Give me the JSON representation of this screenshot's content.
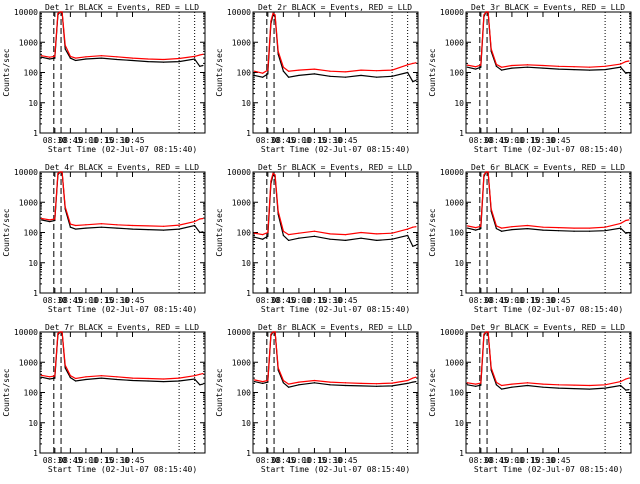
{
  "colors": {
    "events": "#000000",
    "lld": "#ff0000",
    "axis": "#000000",
    "background": "#ffffff"
  },
  "panel_title_suffix": "BLACK = Events, RED = LLD",
  "ylabel": "Counts/sec",
  "xlabel": "Start Time (02-Jul-07 08:15:40)",
  "xtick_labels": [
    "08:30",
    "08:45",
    "10:00",
    "10:15",
    "10:30",
    "10:45"
  ],
  "ytick_labels": [
    "1",
    "10",
    "100",
    "1000",
    "10000"
  ],
  "chart_data": [
    {
      "detector": "Det 1r",
      "title": "Det 1r BLACK = Events, RED = LLD",
      "type": "line",
      "yscale": "log",
      "ylim": [
        1,
        10000
      ],
      "x": [
        "08:17",
        "08:25",
        "08:30",
        "08:33",
        "08:35",
        "08:37",
        "08:40",
        "08:45",
        "08:50",
        "09:00",
        "09:15",
        "09:30",
        "09:45",
        "10:00",
        "10:15",
        "10:30",
        "10:45",
        "10:50",
        "10:53"
      ],
      "series": [
        {
          "name": "Events",
          "values": [
            320,
            280,
            300,
            8000,
            12000,
            11000,
            600,
            300,
            250,
            280,
            300,
            270,
            250,
            230,
            220,
            230,
            280,
            160,
            170
          ]
        },
        {
          "name": "LLD",
          "values": [
            360,
            320,
            340,
            9000,
            13000,
            12000,
            800,
            340,
            300,
            330,
            360,
            330,
            300,
            280,
            270,
            290,
            340,
            380,
            400
          ]
        }
      ]
    },
    {
      "detector": "Det 2r",
      "title": "Det 2r BLACK = Events, RED = LLD",
      "type": "line",
      "yscale": "log",
      "ylim": [
        1,
        10000
      ],
      "x": [
        "08:17",
        "08:25",
        "08:30",
        "08:33",
        "08:35",
        "08:37",
        "08:40",
        "08:45",
        "08:50",
        "09:00",
        "09:15",
        "09:30",
        "09:45",
        "10:00",
        "10:15",
        "10:30",
        "10:45",
        "10:50",
        "10:53"
      ],
      "series": [
        {
          "name": "Events",
          "values": [
            80,
            70,
            90,
            4000,
            8000,
            7000,
            400,
            110,
            70,
            80,
            90,
            75,
            70,
            80,
            70,
            75,
            100,
            50,
            55
          ]
        },
        {
          "name": "LLD",
          "values": [
            110,
            95,
            120,
            5000,
            9000,
            8000,
            500,
            150,
            110,
            120,
            130,
            110,
            105,
            120,
            115,
            120,
            180,
            200,
            210
          ]
        }
      ]
    },
    {
      "detector": "Det 3r",
      "title": "Det 3r BLACK = Events, RED = LLD",
      "type": "line",
      "yscale": "log",
      "ylim": [
        1,
        10000
      ],
      "x": [
        "08:17",
        "08:25",
        "08:30",
        "08:33",
        "08:35",
        "08:37",
        "08:40",
        "08:45",
        "08:50",
        "09:00",
        "09:15",
        "09:30",
        "09:45",
        "10:00",
        "10:15",
        "10:30",
        "10:45",
        "10:50",
        "10:53"
      ],
      "series": [
        {
          "name": "Events",
          "values": [
            150,
            130,
            150,
            7000,
            11000,
            10000,
            500,
            160,
            120,
            140,
            150,
            140,
            130,
            125,
            120,
            125,
            150,
            95,
            100
          ]
        },
        {
          "name": "LLD",
          "values": [
            175,
            155,
            175,
            8000,
            12000,
            11000,
            600,
            185,
            150,
            170,
            180,
            170,
            160,
            155,
            150,
            160,
            190,
            230,
            240
          ]
        }
      ]
    },
    {
      "detector": "Det 4r",
      "title": "Det 4r BLACK = Events, RED = LLD",
      "type": "line",
      "yscale": "log",
      "ylim": [
        1,
        10000
      ],
      "x": [
        "08:17",
        "08:25",
        "08:30",
        "08:33",
        "08:35",
        "08:37",
        "08:40",
        "08:45",
        "08:50",
        "09:00",
        "09:15",
        "09:30",
        "09:45",
        "10:00",
        "10:15",
        "10:30",
        "10:45",
        "10:50",
        "10:53"
      ],
      "series": [
        {
          "name": "Events",
          "values": [
            260,
            230,
            250,
            8000,
            12000,
            11000,
            600,
            150,
            130,
            140,
            150,
            140,
            130,
            125,
            120,
            130,
            170,
            100,
            105
          ]
        },
        {
          "name": "LLD",
          "values": [
            290,
            260,
            280,
            9000,
            13000,
            12000,
            700,
            190,
            170,
            180,
            195,
            180,
            170,
            165,
            160,
            175,
            230,
            280,
            290
          ]
        }
      ]
    },
    {
      "detector": "Det 5r",
      "title": "Det 5r BLACK = Events, RED = LLD",
      "type": "line",
      "yscale": "log",
      "ylim": [
        1,
        10000
      ],
      "x": [
        "08:17",
        "08:25",
        "08:30",
        "08:33",
        "08:35",
        "08:37",
        "08:40",
        "08:45",
        "08:50",
        "09:00",
        "09:15",
        "09:30",
        "09:45",
        "10:00",
        "10:15",
        "10:30",
        "10:45",
        "10:50",
        "10:53"
      ],
      "series": [
        {
          "name": "Events",
          "values": [
            70,
            60,
            75,
            4000,
            8000,
            7000,
            400,
            80,
            55,
            65,
            75,
            60,
            55,
            65,
            55,
            60,
            80,
            35,
            38
          ]
        },
        {
          "name": "LLD",
          "values": [
            95,
            85,
            100,
            5000,
            9000,
            8000,
            500,
            110,
            85,
            95,
            110,
            90,
            85,
            100,
            90,
            95,
            130,
            150,
            155
          ]
        }
      ]
    },
    {
      "detector": "Det 6r",
      "title": "Det 6r BLACK = Events, RED = LLD",
      "type": "line",
      "yscale": "log",
      "ylim": [
        1,
        10000
      ],
      "x": [
        "08:17",
        "08:25",
        "08:30",
        "08:33",
        "08:35",
        "08:37",
        "08:40",
        "08:45",
        "08:50",
        "09:00",
        "09:15",
        "09:30",
        "09:45",
        "10:00",
        "10:15",
        "10:30",
        "10:45",
        "10:50",
        "10:53"
      ],
      "series": [
        {
          "name": "Events",
          "values": [
            140,
            120,
            135,
            7000,
            11000,
            10000,
            500,
            135,
            110,
            125,
            135,
            120,
            115,
            110,
            110,
            115,
            140,
            95,
            100
          ]
        },
        {
          "name": "LLD",
          "values": [
            165,
            145,
            160,
            8000,
            12000,
            11000,
            600,
            165,
            140,
            155,
            170,
            150,
            145,
            140,
            140,
            150,
            200,
            250,
            260
          ]
        }
      ]
    },
    {
      "detector": "Det 7r",
      "title": "Det 7r BLACK = Events, RED = LLD",
      "type": "line",
      "yscale": "log",
      "ylim": [
        1,
        10000
      ],
      "x": [
        "08:17",
        "08:25",
        "08:30",
        "08:33",
        "08:35",
        "08:37",
        "08:40",
        "08:45",
        "08:50",
        "09:00",
        "09:15",
        "09:30",
        "09:45",
        "10:00",
        "10:15",
        "10:30",
        "10:45",
        "10:50",
        "10:53"
      ],
      "series": [
        {
          "name": "Events",
          "values": [
            320,
            280,
            300,
            8000,
            12000,
            11000,
            650,
            310,
            240,
            270,
            300,
            270,
            250,
            240,
            230,
            240,
            280,
            180,
            190
          ]
        },
        {
          "name": "LLD",
          "values": [
            370,
            330,
            350,
            9000,
            13000,
            12000,
            800,
            360,
            290,
            330,
            360,
            330,
            300,
            290,
            280,
            300,
            360,
            400,
            420
          ]
        }
      ]
    },
    {
      "detector": "Det 8r",
      "title": "Det 8r BLACK = Events, RED = LLD",
      "type": "line",
      "yscale": "log",
      "ylim": [
        1,
        10000
      ],
      "x": [
        "08:17",
        "08:25",
        "08:30",
        "08:33",
        "08:35",
        "08:37",
        "08:40",
        "08:45",
        "08:50",
        "09:00",
        "09:15",
        "09:30",
        "09:45",
        "10:00",
        "10:15",
        "10:30",
        "10:45",
        "10:50",
        "10:53"
      ],
      "series": [
        {
          "name": "Events",
          "values": [
            230,
            200,
            220,
            7500,
            11000,
            10000,
            550,
            210,
            150,
            180,
            210,
            180,
            170,
            165,
            160,
            165,
            200,
            220,
            230
          ]
        },
        {
          "name": "LLD",
          "values": [
            260,
            230,
            250,
            8500,
            12000,
            11000,
            650,
            250,
            190,
            220,
            250,
            220,
            210,
            200,
            195,
            205,
            250,
            300,
            320
          ]
        }
      ]
    },
    {
      "detector": "Det 9r",
      "title": "Det 9r BLACK = Events, RED = LLD",
      "type": "line",
      "yscale": "log",
      "ylim": [
        1,
        10000
      ],
      "x": [
        "08:17",
        "08:25",
        "08:30",
        "08:33",
        "08:35",
        "08:37",
        "08:40",
        "08:45",
        "08:50",
        "09:00",
        "09:15",
        "09:30",
        "09:45",
        "10:00",
        "10:15",
        "10:30",
        "10:45",
        "10:50",
        "10:53"
      ],
      "series": [
        {
          "name": "Events",
          "values": [
            180,
            160,
            175,
            7500,
            11000,
            10000,
            550,
            180,
            130,
            150,
            170,
            150,
            140,
            135,
            130,
            140,
            170,
            120,
            125
          ]
        },
        {
          "name": "LLD",
          "values": [
            210,
            190,
            205,
            8500,
            12000,
            11000,
            650,
            215,
            170,
            190,
            210,
            190,
            180,
            175,
            170,
            180,
            230,
            280,
            300
          ]
        }
      ]
    }
  ]
}
